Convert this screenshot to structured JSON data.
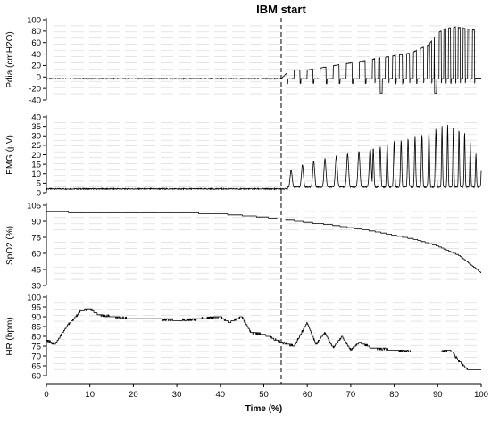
{
  "annotation": {
    "label": "IBM start",
    "x": 54
  },
  "x_axis": {
    "label": "Time (%)",
    "range": [
      0,
      100
    ],
    "ticks": [
      0,
      10,
      20,
      30,
      40,
      50,
      60,
      70,
      80,
      90,
      100
    ]
  },
  "colors": {
    "line": "#000000",
    "grid": "#d3d3d3"
  },
  "chart_data": [
    {
      "type": "line",
      "ylabel": "Pdia (cmH2O)",
      "ylim": [
        -40,
        100
      ],
      "yticks": [
        -40,
        -20,
        0,
        20,
        40,
        60,
        80,
        100
      ],
      "grid": true,
      "x": [
        0,
        10,
        20,
        30,
        40,
        50,
        54,
        56,
        60,
        64,
        68,
        72,
        76,
        80,
        84,
        88,
        90,
        92,
        94,
        96,
        98
      ],
      "values": [
        -3,
        -2,
        -1,
        -1,
        0,
        0,
        0,
        15,
        15,
        20,
        25,
        30,
        35,
        40,
        45,
        60,
        80,
        88,
        90,
        88,
        85
      ],
      "note": "",
      "baseline": -3
    },
    {
      "type": "line",
      "ylabel": "EMG (µV)",
      "ylim": [
        0,
        40
      ],
      "yticks": [
        0,
        5,
        10,
        15,
        20,
        25,
        30,
        35,
        40
      ],
      "grid": true,
      "x": [
        0,
        10,
        20,
        30,
        40,
        50,
        54,
        56,
        60,
        64,
        68,
        72,
        76,
        80,
        84,
        88,
        92,
        96,
        100
      ],
      "values": [
        2,
        2,
        2,
        2,
        2,
        2,
        2,
        12,
        16,
        18,
        20,
        22,
        24,
        27,
        29,
        32,
        36,
        33,
        15
      ],
      "baseline": 2
    },
    {
      "type": "line",
      "ylabel": "SpO2 (%)",
      "ylim": [
        30,
        105
      ],
      "yticks": [
        30,
        45,
        60,
        75,
        90,
        105
      ],
      "grid": true,
      "x": [
        0,
        10,
        20,
        30,
        40,
        50,
        54,
        60,
        65,
        70,
        75,
        80,
        85,
        90,
        95,
        100
      ],
      "values": [
        99,
        98,
        98,
        98,
        97,
        94,
        92,
        89,
        87,
        84,
        81,
        77,
        73,
        67,
        58,
        42
      ]
    },
    {
      "type": "line",
      "ylabel": "HR (bpm)",
      "ylim": [
        60,
        100
      ],
      "yticks": [
        60,
        65,
        70,
        75,
        80,
        85,
        90,
        95,
        100
      ],
      "grid": true,
      "x": [
        0,
        2,
        5,
        8,
        10,
        12,
        15,
        20,
        25,
        30,
        35,
        40,
        42,
        45,
        47,
        50,
        54,
        57,
        60,
        62,
        64,
        66,
        68,
        70,
        72,
        75,
        80,
        85,
        90,
        93,
        95,
        97,
        100
      ],
      "values": [
        78,
        76,
        86,
        93,
        94,
        91,
        90,
        89,
        89,
        88,
        89,
        90,
        87,
        90,
        82,
        81,
        77,
        75,
        87,
        76,
        82,
        74,
        80,
        73,
        77,
        74,
        73,
        72,
        72,
        73,
        67,
        63,
        63
      ]
    }
  ]
}
